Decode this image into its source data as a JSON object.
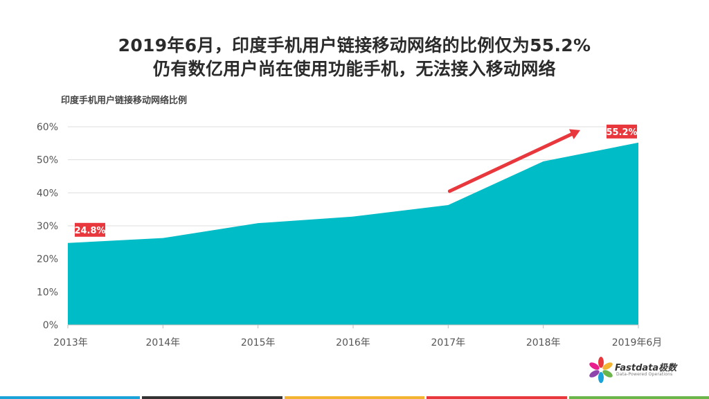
{
  "header": {
    "title_line1": "2019年6月，印度手机用户链接移动网络的比例仅为55.2%",
    "title_line2": "仍有数亿用户尚在使用功能手机，无法接入移动网络"
  },
  "chart_data": {
    "type": "area",
    "title": "印度手机用户链接移动网络比例",
    "categories": [
      "2013年",
      "2014年",
      "2015年",
      "2016年",
      "2017年",
      "2018年",
      "2019年6月"
    ],
    "series": [
      {
        "values": [
          24.8,
          26.3,
          30.8,
          32.8,
          36.3,
          49.5,
          55.2
        ],
        "color": "#00bcc6"
      }
    ],
    "ylim": [
      0,
      60
    ],
    "yticks": [
      0,
      10,
      20,
      30,
      40,
      50,
      60
    ],
    "ytick_labels": [
      "0%",
      "10%",
      "20%",
      "30%",
      "40%",
      "50%",
      "60%"
    ],
    "grid": true,
    "annotations": [
      {
        "label": "24.8%",
        "category_index": 0,
        "color": "#e8383d"
      },
      {
        "label": "55.2%",
        "category_index": 6,
        "color": "#e8383d"
      }
    ],
    "trend_arrow": {
      "from_index": 4,
      "to_index": 6,
      "color": "#e8383d"
    }
  },
  "logo": {
    "text": "Fastdata极数",
    "tagline": "Data-Powered Operations"
  },
  "bottom_bar_colors": [
    "#1aa3d9",
    "#333333",
    "#f3b531",
    "#e8383d",
    "#6ab64a"
  ]
}
